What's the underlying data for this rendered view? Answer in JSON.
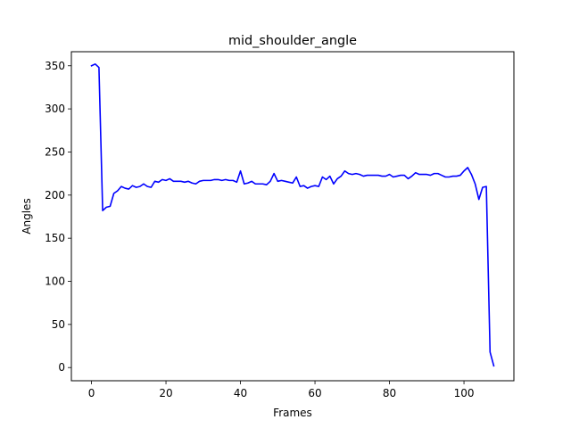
{
  "chart_data": {
    "type": "line",
    "title": "mid_shoulder_angle",
    "xlabel": "Frames",
    "ylabel": "Angles",
    "xlim": [
      -5.4,
      113.4
    ],
    "ylim": [
      -15.3,
      366.3
    ],
    "xticks": [
      0,
      20,
      40,
      60,
      80,
      100
    ],
    "yticks": [
      0,
      50,
      100,
      150,
      200,
      250,
      300,
      350
    ],
    "grid": false,
    "legend": "none",
    "series": [
      {
        "color": "#0000ff",
        "x": [
          0,
          1,
          2,
          3,
          4,
          5,
          6,
          7,
          8,
          9,
          10,
          11,
          12,
          13,
          14,
          15,
          16,
          17,
          18,
          19,
          20,
          21,
          22,
          23,
          24,
          25,
          26,
          27,
          28,
          29,
          30,
          31,
          32,
          33,
          34,
          35,
          36,
          37,
          38,
          39,
          40,
          41,
          42,
          43,
          44,
          45,
          46,
          47,
          48,
          49,
          50,
          51,
          52,
          53,
          54,
          55,
          56,
          57,
          58,
          59,
          60,
          61,
          62,
          63,
          64,
          65,
          66,
          67,
          68,
          69,
          70,
          71,
          72,
          73,
          74,
          75,
          76,
          77,
          78,
          79,
          80,
          81,
          82,
          83,
          84,
          85,
          86,
          87,
          88,
          89,
          90,
          91,
          92,
          93,
          94,
          95,
          96,
          97,
          98,
          99,
          100,
          101,
          102,
          103,
          104,
          105,
          106,
          107,
          108
        ],
        "y": [
          350,
          352,
          348,
          182,
          186,
          187,
          202,
          205,
          210,
          208,
          207,
          211,
          209,
          210,
          213,
          210,
          209,
          216,
          215,
          218,
          217,
          219,
          216,
          216,
          216,
          215,
          216,
          214,
          213,
          216,
          217,
          217,
          217,
          218,
          218,
          217,
          218,
          217,
          217,
          215,
          228,
          213,
          214,
          216,
          213,
          213,
          213,
          212,
          216,
          225,
          216,
          217,
          216,
          215,
          214,
          221,
          210,
          211,
          208,
          210,
          211,
          210,
          221,
          218,
          222,
          213,
          219,
          222,
          228,
          225,
          224,
          225,
          224,
          222,
          223,
          223,
          223,
          223,
          222,
          222,
          224,
          221,
          222,
          223,
          223,
          219,
          222,
          226,
          224,
          224,
          224,
          223,
          225,
          225,
          223,
          221,
          221,
          222,
          222,
          223,
          228,
          232,
          224,
          213,
          195,
          209,
          210,
          18,
          2
        ]
      }
    ]
  }
}
